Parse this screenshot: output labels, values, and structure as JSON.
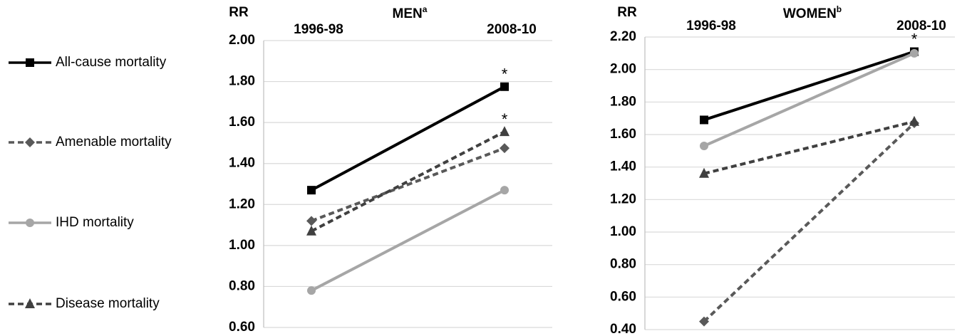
{
  "legend": {
    "entries": [
      {
        "name": "All-cause mortality",
        "color": "#000000",
        "dash": "none",
        "marker": "square"
      },
      {
        "name": "Amenable mortality",
        "color": "#595959",
        "dash": "8,5",
        "marker": "diamond"
      },
      {
        "name": "IHD mortality",
        "color": "#a6a6a6",
        "dash": "none",
        "marker": "circle"
      },
      {
        "name": "Disease mortality",
        "color": "#404040",
        "dash": "8,5",
        "marker": "triangle"
      }
    ]
  },
  "chart_data": [
    {
      "type": "line",
      "title": "MEN",
      "title_superscript": "a",
      "y_label": "RR",
      "categories": [
        "1996-98",
        "2008-10"
      ],
      "series": [
        {
          "values": [
            1.27,
            1.775
          ],
          "annotations": [
            null,
            "*"
          ]
        },
        {
          "values": [
            1.12,
            1.475
          ]
        },
        {
          "values": [
            0.78,
            1.27
          ]
        },
        {
          "values": [
            1.07,
            1.555
          ],
          "annotations": [
            null,
            "*"
          ]
        }
      ],
      "ylim": [
        0.6,
        2.0
      ],
      "yticks": [
        {
          "value": 0.6,
          "label": "0.60"
        },
        {
          "value": 0.8,
          "label": "0.80"
        },
        {
          "value": 1.0,
          "label": "1.00"
        },
        {
          "value": 1.2,
          "label": "1.20"
        },
        {
          "value": 1.4,
          "label": "1.40"
        },
        {
          "value": 1.6,
          "label": "1.60"
        },
        {
          "value": 1.8,
          "label": "1.80"
        },
        {
          "value": 2.0,
          "label": "2.00"
        }
      ],
      "grid": true
    },
    {
      "type": "line",
      "title": "WOMEN",
      "title_superscript": "b",
      "y_label": "RR",
      "categories": [
        "1996-98",
        "2008-10"
      ],
      "series": [
        {
          "values": [
            1.69,
            2.11
          ],
          "annotations": [
            null,
            "*"
          ]
        },
        {
          "values": [
            0.45,
            1.67
          ]
        },
        {
          "values": [
            1.53,
            2.1
          ]
        },
        {
          "values": [
            1.36,
            1.68
          ]
        }
      ],
      "ylim": [
        0.4,
        2.2
      ],
      "yticks": [
        {
          "value": 0.4,
          "label": "0.40"
        },
        {
          "value": 0.6,
          "label": "0.60"
        },
        {
          "value": 0.8,
          "label": "0.80"
        },
        {
          "value": 1.0,
          "label": "1.00"
        },
        {
          "value": 1.2,
          "label": "1.20"
        },
        {
          "value": 1.4,
          "label": "1.40"
        },
        {
          "value": 1.6,
          "label": "1.60"
        },
        {
          "value": 1.8,
          "label": "1.80"
        },
        {
          "value": 2.0,
          "label": "2.00"
        },
        {
          "value": 2.2,
          "label": "2.20"
        }
      ],
      "grid": true
    }
  ]
}
